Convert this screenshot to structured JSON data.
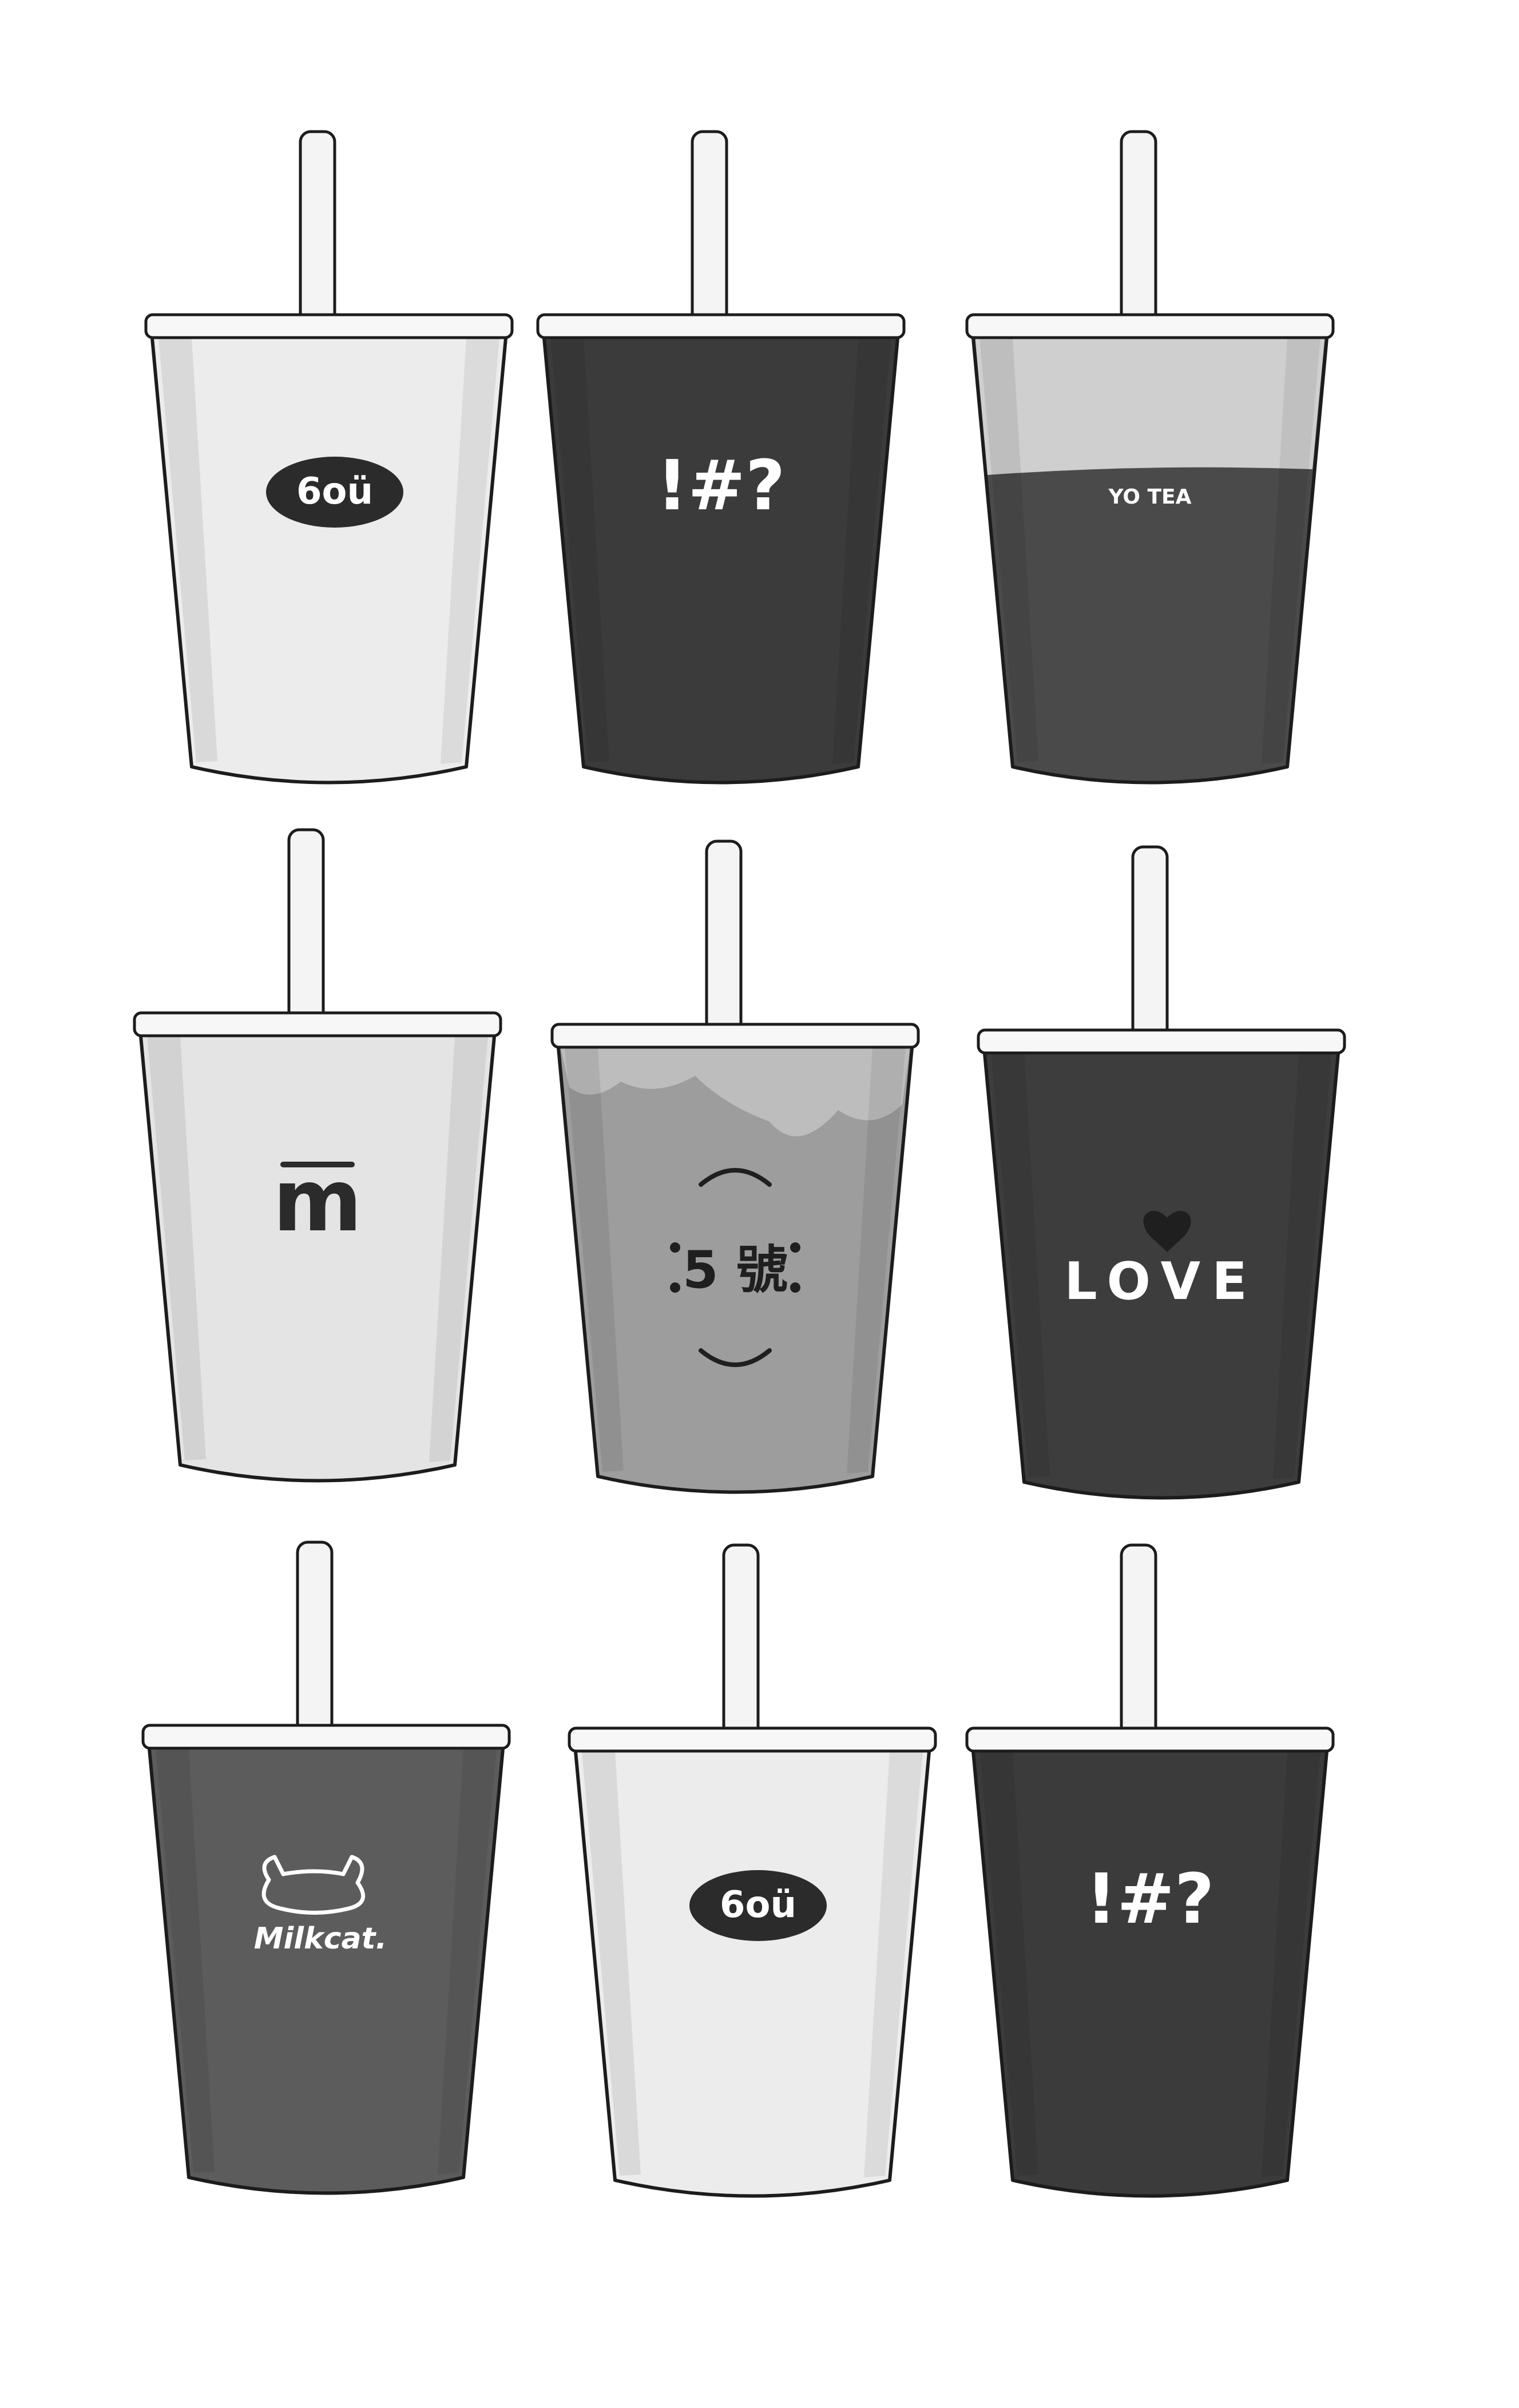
{
  "cups": [
    {
      "brand": "6oü",
      "logo": "oval-badge",
      "body_color": "#ececec",
      "ink_color": "#2b2b2b",
      "text_color": "#ffffff"
    },
    {
      "brand": "!#?",
      "logo": "text",
      "body_color": "#3b3b3b",
      "ink_color": "#ffffff",
      "text_color": "#ffffff"
    },
    {
      "brand": "YO TEA",
      "logo": "split-band",
      "body_color": "#4a4a4a",
      "top_color": "#cfcfcf",
      "ink_color": "#ffffff",
      "text_color": "#ffffff"
    },
    {
      "brand": "m",
      "logo": "m-mark",
      "body_color": "#e4e4e4",
      "ink_color": "#2b2b2b",
      "text_color": "#2b2b2b"
    },
    {
      "brand": "5 號",
      "logo": "ring-mark",
      "body_color": "#9d9d9d",
      "top_color": "#bdbdbd",
      "ink_color": "#1f1f1f",
      "text_color": "#1f1f1f"
    },
    {
      "brand": "LOVE",
      "logo": "heart-word",
      "body_color": "#3d3d3d",
      "ink_color": "#ffffff",
      "text_color": "#ffffff"
    },
    {
      "brand": "Milkcat.",
      "logo": "cat-mark",
      "body_color": "#5c5c5c",
      "ink_color": "#ffffff",
      "text_color": "#ffffff"
    },
    {
      "brand": "6oü",
      "logo": "oval-badge",
      "body_color": "#ececec",
      "ink_color": "#2b2b2b",
      "text_color": "#ffffff"
    },
    {
      "brand": "!#?",
      "logo": "text",
      "body_color": "#3b3b3b",
      "ink_color": "#ffffff",
      "text_color": "#ffffff"
    }
  ],
  "colors": {
    "outline": "#1c1c1c",
    "straw": "#f4f4f4",
    "rim": "#f7f7f7",
    "background": "#ffffff"
  }
}
